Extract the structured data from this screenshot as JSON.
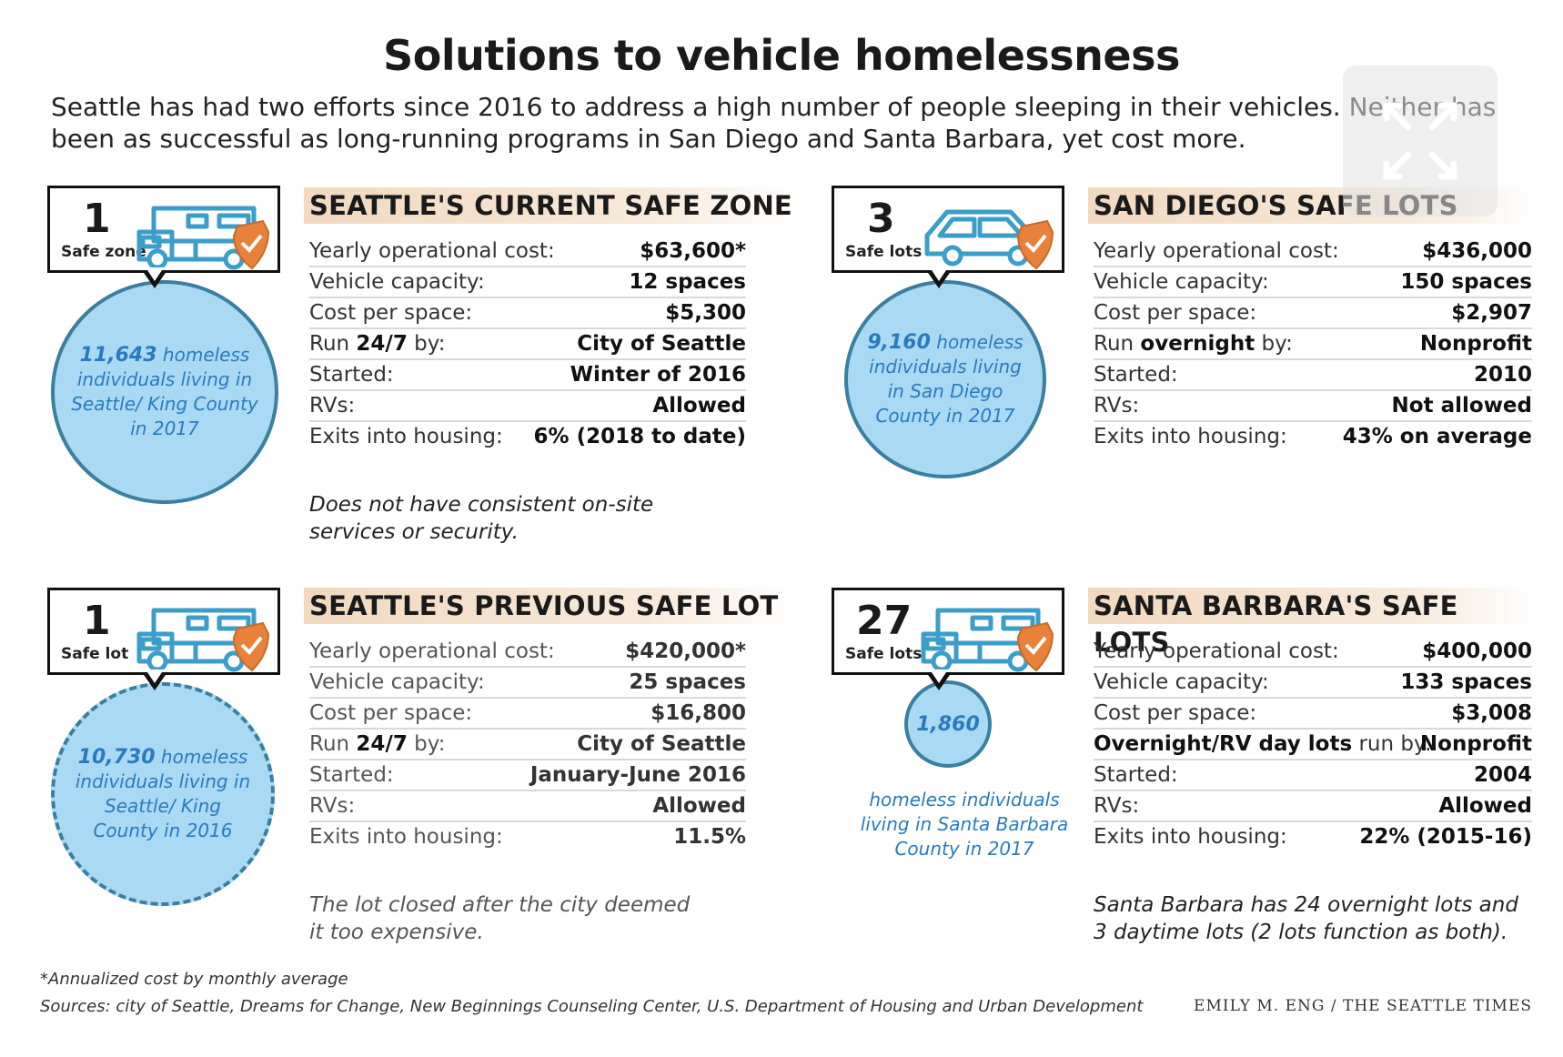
{
  "title": "Solutions to vehicle homelessness",
  "subtitle": "Seattle has had two efforts since 2016 to address a high number of people sleeping in their vehicles. Neither has been as successful as long-running programs in San Diego and Santa Barbara, yet cost more.",
  "labels": {
    "yearly_cost": "Yearly operational cost:",
    "capacity": "Vehicle capacity:",
    "cost_per_space": "Cost per space:",
    "run_prefix": "Run ",
    "run_suffix": " by:",
    "started": "Started:",
    "rvs": "RVs:",
    "exits": "Exits into housing:"
  },
  "seattle_current": {
    "count": "1",
    "count_label": "Safe zone",
    "circle_number": "11,643",
    "circle_text_a": " homeless individuals living in Seattle/ King County in 2017",
    "heading": "SEATTLE'S CURRENT SAFE ZONE",
    "yearly_cost": "$63,600*",
    "capacity": "12 spaces",
    "cost_per_space": "$5,300",
    "run_bold": "24/7",
    "run_by": "City of Seattle",
    "started": "Winter of 2016",
    "rvs": "Allowed",
    "exits": "6% (2018 to date)",
    "note": "Does not have consistent on-site services or security."
  },
  "san_diego": {
    "count": "3",
    "count_label": "Safe lots",
    "circle_number": "9,160",
    "circle_text_a": " homeless individuals living in San Diego County in 2017",
    "heading": "SAN DIEGO'S SAFE LOTS",
    "yearly_cost": "$436,000",
    "capacity": "150 spaces",
    "cost_per_space": "$2,907",
    "run_bold": "overnight",
    "run_by": "Nonprofit",
    "started": "2010",
    "rvs": "Not allowed",
    "exits": "43% on average"
  },
  "seattle_previous": {
    "count": "1",
    "count_label": "Safe lot",
    "circle_number": "10,730",
    "circle_text_a": " homeless individuals living in Seattle/ King County in 2016",
    "heading": "SEATTLE'S PREVIOUS SAFE LOT",
    "yearly_cost": "$420,000*",
    "capacity": "25 spaces",
    "cost_per_space": "$16,800",
    "run_bold": "24/7",
    "run_by": "City of Seattle",
    "started": "January-June 2016",
    "rvs": "Allowed",
    "exits": "11.5%",
    "note": "The lot closed after the city deemed it too expensive."
  },
  "santa_barbara": {
    "count": "27",
    "count_label": "Safe lots",
    "circle_number": "1,860",
    "caption": "homeless individuals living in Santa Barbara County in 2017",
    "heading": "SANTA BARBARA'S SAFE LOTS",
    "yearly_cost": "$400,000",
    "capacity": "133 spaces",
    "cost_per_space": "$3,008",
    "run_label_bold": "Overnight/RV day lots",
    "run_label_rest": " run by:",
    "run_by": "Nonprofit",
    "started": "2004",
    "rvs": "Allowed",
    "exits": "22% (2015-16)",
    "note": "Santa Barbara has 24 overnight lots and 3 daytime lots (2 lots function as both)."
  },
  "footnote": "*Annualized cost by monthly average",
  "sources": "Sources: city of Seattle, Dreams for Change, New Beginnings Counseling Center, U.S. Department of Housing and Urban Development",
  "credit": "EMILY M. ENG / THE SEATTLE TIMES",
  "colors": {
    "accent_blue": "#a9d9f3",
    "circle_border": "#3a7fa0",
    "header_tan": "#f2d9bf",
    "shield_orange": "#e8823a",
    "icon_blue": "#3b9ec9"
  },
  "icons": [
    "rv-icon",
    "car-icon",
    "shield-check-icon",
    "expand-icon"
  ]
}
